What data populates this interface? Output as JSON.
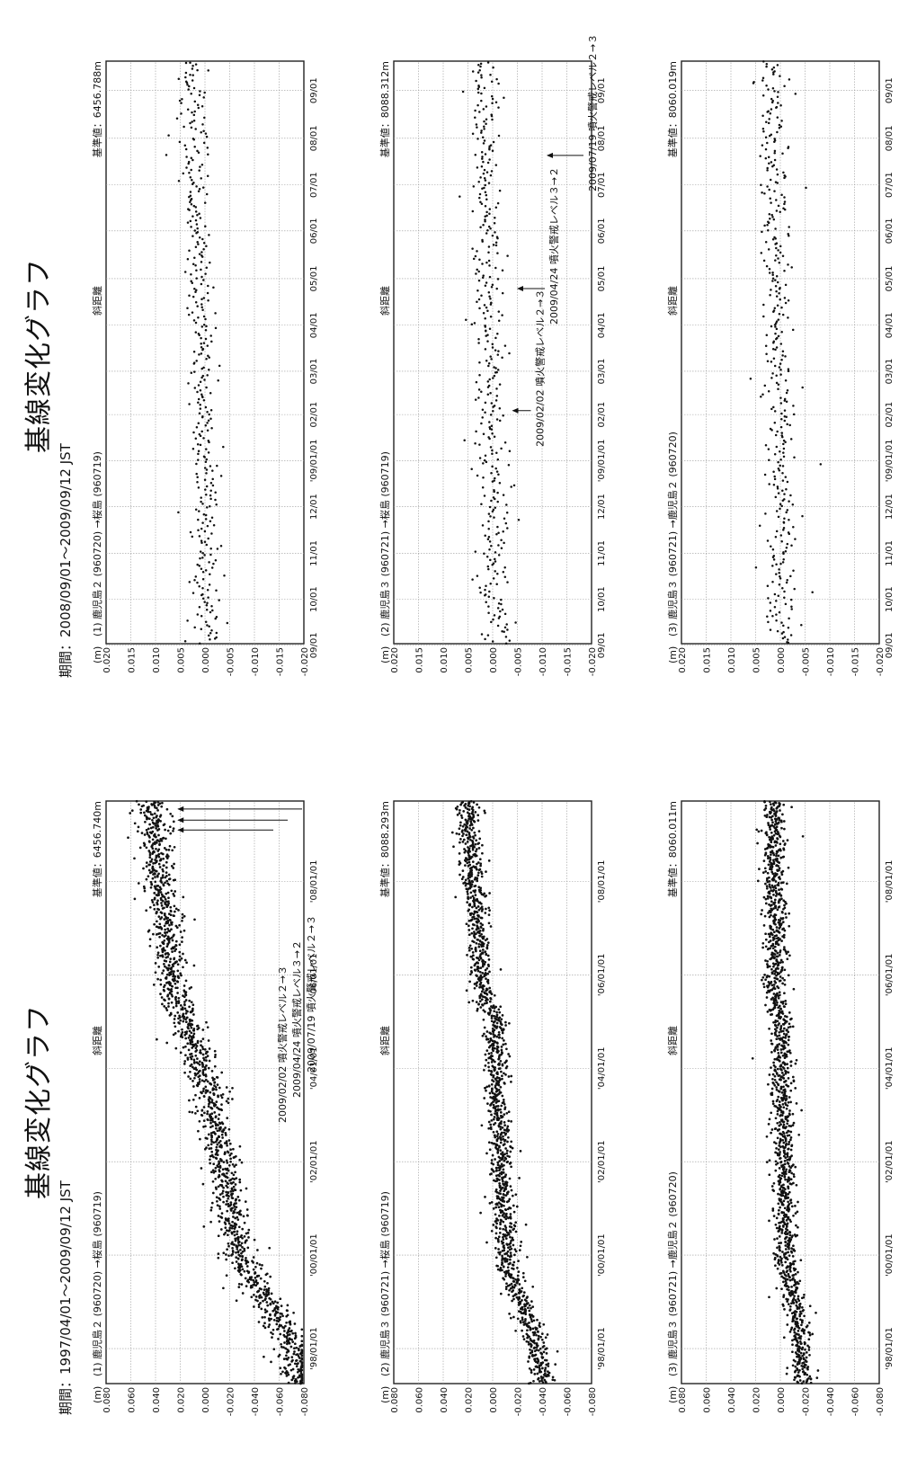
{
  "halves": [
    {
      "title": "基線変化グラフ",
      "period": "期間：1997/04/01〜2009/09/12  JST"
    },
    {
      "title": "基線変化グラフ",
      "period": "期間：2008/09/01〜2009/09/12  JST"
    }
  ],
  "colors": {
    "ink": "#111111",
    "grid": "#9a9a9a",
    "frame": "#222222",
    "background": "#ffffff"
  },
  "chart_data": [
    {
      "type": "scatter",
      "unit": "(m)",
      "label": "(1)  鹿児島２ (960720) →桜島 (960719)",
      "kind": "斜距離",
      "reference": "基準値：6456.740m",
      "ylim": [
        -0.08,
        0.08
      ],
      "yticks": [
        "0.080",
        "0.060",
        "0.040",
        "0.020",
        "0.000",
        "-0.020",
        "-0.040",
        "-0.060",
        "-0.080"
      ],
      "xlim": [
        1997.25,
        2009.72
      ],
      "xticks": [
        "'98/01/01",
        "'00/01/01",
        "'02/01/01",
        "'04/01/01",
        "'06/01/01",
        "'08/01/01"
      ],
      "trend": [
        [
          1997.3,
          -0.075
        ],
        [
          1998.0,
          -0.072
        ],
        [
          1999.0,
          -0.05
        ],
        [
          1999.8,
          -0.032
        ],
        [
          2000.5,
          -0.023
        ],
        [
          2001.5,
          -0.018
        ],
        [
          2002.3,
          -0.012
        ],
        [
          2003.0,
          -0.006
        ],
        [
          2003.8,
          0.0
        ],
        [
          2004.6,
          0.01
        ],
        [
          2005.4,
          0.023
        ],
        [
          2006.0,
          0.028
        ],
        [
          2007.0,
          0.032
        ],
        [
          2008.0,
          0.037
        ],
        [
          2009.7,
          0.044
        ]
      ],
      "noise": 0.0065,
      "outlier_rate": 0.04,
      "count": 1600,
      "grid": true,
      "annotations": [
        {
          "text": "2009/02/02  噴火警戒レベル２→３",
          "x": 2009.1,
          "y": 0.026
        },
        {
          "text": "2009/04/24  噴火警戒レベル３→２",
          "x": 2009.31,
          "y": 0.026
        },
        {
          "text": "2009/07/19  噴火警戒レベル２→３",
          "x": 2009.55,
          "y": 0.026
        }
      ]
    },
    {
      "type": "scatter",
      "unit": "(m)",
      "label": "(2)  鹿児島３ (960721) →桜島 (960719)",
      "kind": "斜距離",
      "reference": "基準値：8088.293m",
      "ylim": [
        -0.08,
        0.08
      ],
      "yticks": [
        "0.080",
        "0.060",
        "0.040",
        "0.020",
        "0.000",
        "-0.020",
        "-0.040",
        "-0.060",
        "-0.080"
      ],
      "xlim": [
        1997.25,
        2009.72
      ],
      "xticks": [
        "'98/01/01",
        "'00/01/01",
        "'02/01/01",
        "'04/01/01",
        "'06/01/01",
        "'08/01/01"
      ],
      "trend": [
        [
          1997.3,
          -0.04
        ],
        [
          1998.0,
          -0.036
        ],
        [
          1999.0,
          -0.024
        ],
        [
          1999.8,
          -0.012
        ],
        [
          2000.5,
          -0.01
        ],
        [
          2001.5,
          -0.008
        ],
        [
          2002.5,
          -0.006
        ],
        [
          2003.5,
          -0.003
        ],
        [
          2004.5,
          -0.002
        ],
        [
          2005.0,
          -0.004
        ],
        [
          2005.4,
          0.006
        ],
        [
          2006.0,
          0.009
        ],
        [
          2007.0,
          0.012
        ],
        [
          2008.0,
          0.016
        ],
        [
          2009.7,
          0.02
        ]
      ],
      "noise": 0.0045,
      "outlier_rate": 0.03,
      "count": 1500,
      "grid": true,
      "annotations": []
    },
    {
      "type": "scatter",
      "unit": "(m)",
      "label": "(3)  鹿児島３ (960721) →鹿児島２ (960720)",
      "kind": "斜距離",
      "reference": "基準値：8060.011m",
      "ylim": [
        -0.08,
        0.08
      ],
      "yticks": [
        "0.080",
        "0.060",
        "0.040",
        "0.020",
        "0.000",
        "-0.020",
        "-0.040",
        "-0.060",
        "-0.080"
      ],
      "xlim": [
        1997.25,
        2009.72
      ],
      "xticks": [
        "'98/01/01",
        "'00/01/01",
        "'02/01/01",
        "'04/01/01",
        "'06/01/01",
        "'08/01/01"
      ],
      "trend": [
        [
          1997.3,
          -0.018
        ],
        [
          1998.0,
          -0.016
        ],
        [
          1999.0,
          -0.012
        ],
        [
          1999.8,
          -0.005
        ],
        [
          2000.5,
          -0.004
        ],
        [
          2002.0,
          -0.003
        ],
        [
          2004.0,
          -0.001
        ],
        [
          2005.0,
          -0.001
        ],
        [
          2005.4,
          0.004
        ],
        [
          2006.5,
          0.004
        ],
        [
          2008.0,
          0.005
        ],
        [
          2009.7,
          0.006
        ]
      ],
      "noise": 0.0045,
      "outlier_rate": 0.035,
      "count": 1500,
      "grid": true,
      "annotations": []
    },
    {
      "type": "scatter",
      "unit": "(m)",
      "label": "(1)  鹿児島２ (960720) →桜島 (960719)",
      "kind": "斜距離",
      "reference": "基準値：6456.788m",
      "ylim": [
        -0.02,
        0.02
      ],
      "yticks": [
        "0.020",
        "0.015",
        "0.010",
        "0.005",
        "0.000",
        "-0.005",
        "-0.010",
        "-0.015",
        "-0.020"
      ],
      "xlim": [
        2008.67,
        2009.72
      ],
      "xticks": [
        "09/01",
        "10/01",
        "11/01",
        "12/01",
        "'09/01/01",
        "02/01",
        "03/01",
        "04/01",
        "05/01",
        "06/01",
        "07/01",
        "08/01",
        "09/01"
      ],
      "trend": [
        [
          2008.67,
          0.0
        ],
        [
          2009.0,
          0.0
        ],
        [
          2009.3,
          0.001
        ],
        [
          2009.5,
          0.002
        ],
        [
          2009.72,
          0.003
        ]
      ],
      "noise": 0.0014,
      "outlier_rate": 0.05,
      "count": 380,
      "grid": true,
      "annotations": []
    },
    {
      "type": "scatter",
      "unit": "(m)",
      "label": "(2)  鹿児島３ (960721) →桜島 (960719)",
      "kind": "斜距離",
      "reference": "基準値：8088.312m",
      "ylim": [
        -0.02,
        0.02
      ],
      "yticks": [
        "0.020",
        "0.015",
        "0.010",
        "0.005",
        "0.000",
        "-0.005",
        "-0.010",
        "-0.015",
        "-0.020"
      ],
      "xlim": [
        2008.67,
        2009.72
      ],
      "xticks": [
        "09/01",
        "10/01",
        "11/01",
        "12/01",
        "'09/01/01",
        "02/01",
        "03/01",
        "04/01",
        "05/01",
        "06/01",
        "07/01",
        "08/01",
        "09/01"
      ],
      "trend": [
        [
          2008.67,
          -0.001
        ],
        [
          2009.0,
          0.0
        ],
        [
          2009.3,
          0.001
        ],
        [
          2009.5,
          0.001
        ],
        [
          2009.72,
          0.002
        ]
      ],
      "noise": 0.0016,
      "outlier_rate": 0.05,
      "count": 380,
      "grid": true,
      "annotations": [
        {
          "text": "2009/02/02  噴火警戒レベル２→３",
          "x": 2009.09,
          "y": -0.003
        },
        {
          "text": "2009/04/24  噴火警戒レベル３→２",
          "x": 2009.31,
          "y": -0.004
        },
        {
          "text": "2009/07/19  噴火警戒レベル２→３",
          "x": 2009.55,
          "y": -0.01
        }
      ]
    },
    {
      "type": "scatter",
      "unit": "(m)",
      "label": "(3)  鹿児島３ (960721) →鹿児島２ (960720)",
      "kind": "斜距離",
      "reference": "基準値：8060.019m",
      "ylim": [
        -0.02,
        0.02
      ],
      "yticks": [
        "0.020",
        "0.015",
        "0.010",
        "0.005",
        "0.000",
        "-0.005",
        "-0.010",
        "-0.015",
        "-0.020"
      ],
      "xlim": [
        2008.67,
        2009.72
      ],
      "xticks": [
        "09/01",
        "10/01",
        "11/01",
        "12/01",
        "'09/01/01",
        "02/01",
        "03/01",
        "04/01",
        "05/01",
        "06/01",
        "07/01",
        "08/01",
        "09/01"
      ],
      "trend": [
        [
          2008.67,
          0.0
        ],
        [
          2009.0,
          0.0
        ],
        [
          2009.4,
          0.001
        ],
        [
          2009.72,
          0.002
        ]
      ],
      "noise": 0.0015,
      "outlier_rate": 0.05,
      "count": 380,
      "grid": true,
      "annotations": []
    }
  ]
}
